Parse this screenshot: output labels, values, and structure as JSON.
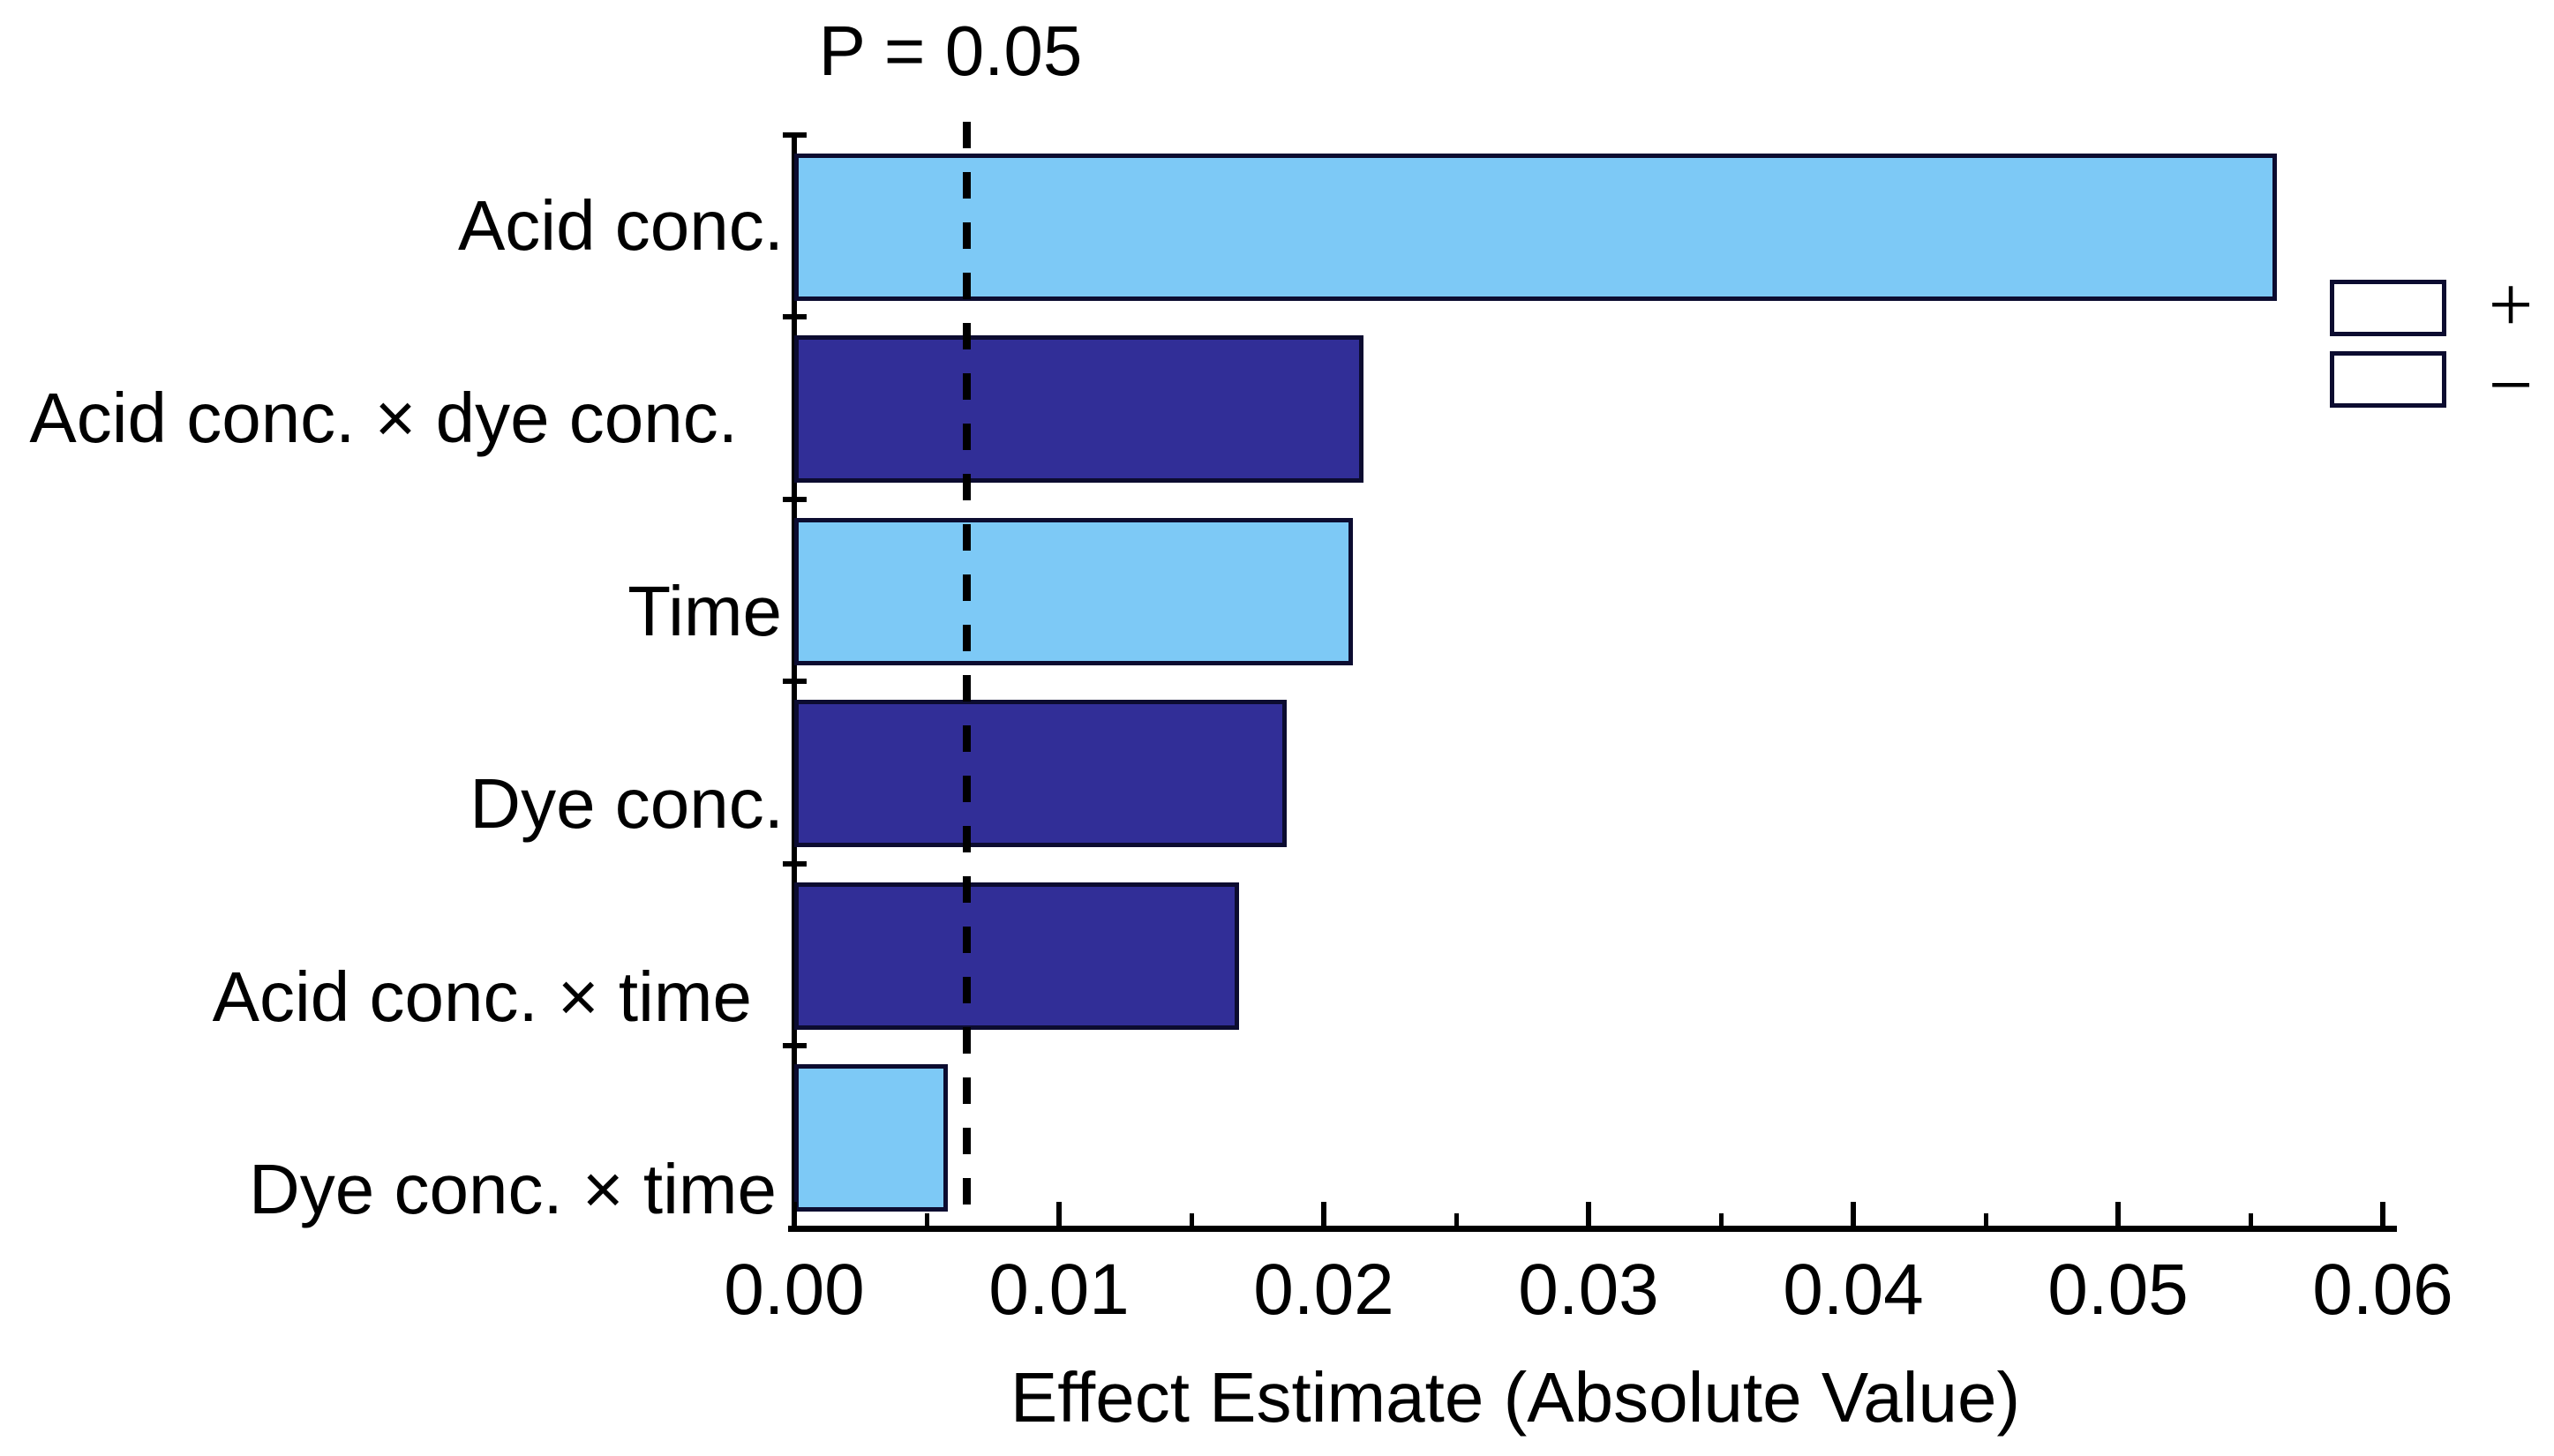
{
  "chart_data": {
    "type": "bar",
    "orientation": "horizontal",
    "title": "P = 0.05",
    "xlabel": "Effect Estimate (Absolute Value)",
    "categories": [
      "Acid conc.",
      "Acid conc. × dye conc.",
      "Time",
      "Dye conc.",
      "Acid conc. × time",
      "Dye conc. × time"
    ],
    "values": [
      0.056,
      0.0215,
      0.0211,
      0.0186,
      0.0168,
      0.0058
    ],
    "signs": [
      "+",
      "−",
      "+",
      "−",
      "−",
      "+"
    ],
    "threshold": {
      "value": 0.0065,
      "label": "P = 0.05",
      "style": "dashed"
    },
    "x_ticks": [
      "0.00",
      "0.01",
      "0.02",
      "0.03",
      "0.04",
      "0.05",
      "0.06"
    ],
    "x_minor_tick_step": 0.005,
    "xlim": [
      0,
      0.06
    ],
    "grid": false,
    "colors": {
      "positive": "#7DC9F6",
      "negative": "#312E97",
      "bar_border": "#0C0C30",
      "axis": "#000000",
      "text": "#000000"
    },
    "legend": {
      "position": "right",
      "items": [
        {
          "symbol": "+",
          "color": "#7DC9F6"
        },
        {
          "symbol": "−",
          "color": "#312E97"
        }
      ]
    }
  }
}
